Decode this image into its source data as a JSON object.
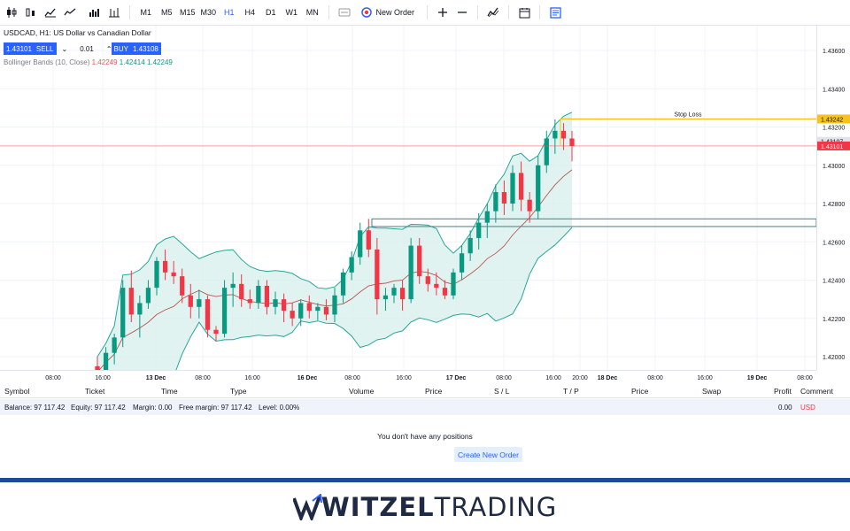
{
  "toolbar": {
    "icons": [
      "candles-icon",
      "bars-icon",
      "area-icon",
      "line-icon",
      "volume-icon",
      "tools-icon"
    ],
    "timeframes": [
      "M1",
      "M5",
      "M15",
      "M30",
      "H1",
      "H4",
      "D1",
      "W1",
      "MN"
    ],
    "active_timeframe": "H1",
    "new_order_label": "New Order"
  },
  "legend": {
    "title": "USDCAD, H1: US Dollar vs Canadian Dollar",
    "sell_price": "1.43101",
    "sell_label": "SELL",
    "quantity": "0.01",
    "buy_label": "BUY",
    "buy_price": "1.43108",
    "indicator_name": "Bollinger Bands (10, Close)",
    "indicator_values": [
      "1.42249",
      "1.42414",
      "1.42249"
    ]
  },
  "price_axis": {
    "labels": [
      "1.43600",
      "1.43400",
      "1.43200",
      "1.43000",
      "1.42800",
      "1.42600",
      "1.42400",
      "1.42200",
      "1.42000"
    ],
    "stop_loss_tag": "1.43242",
    "current_tag": "1.43107",
    "bid_tag": "1.43101"
  },
  "time_axis": {
    "labels": [
      "08:00",
      "16:00",
      "13 Dec",
      "08:00",
      "16:00",
      "16 Dec",
      "08:00",
      "16:00",
      "17 Dec",
      "08:00",
      "16:00",
      "20:00",
      "18 Dec",
      "08:00",
      "16:00",
      "19 Dec",
      "08:00"
    ]
  },
  "annotations": {
    "stop_loss_label": "Stop Loss"
  },
  "colors": {
    "accent": "#2962ff",
    "bull": "#089981",
    "bear": "#f23645",
    "band_fill": "#d7efec",
    "stop_loss": "#f7c21b",
    "bid_line": "#ef5350",
    "brand_dark": "#1f2a44"
  },
  "positions": {
    "columns": [
      "Symbol",
      "Ticket",
      "Time",
      "Type",
      "Volume",
      "Price",
      "S / L",
      "T / P",
      "Price",
      "Swap",
      "Profit",
      "Comment"
    ],
    "balance": "Balance: 97 117.42",
    "equity": "Equity: 97 117.42",
    "margin": "Margin: 0.00",
    "free_margin": "Free margin: 97 117.42",
    "level": "Level: 0.00%",
    "profit": "0.00",
    "currency": "USD",
    "empty_text": "You don't have any positions",
    "create_button": "Create New Order"
  },
  "brand": {
    "part1": "WITZEL",
    "part2": "TRADING"
  },
  "chart_data": {
    "type": "candlestick",
    "symbol": "USDCAD",
    "timeframe": "H1",
    "ylim": [
      1.419,
      1.437
    ],
    "candles": [
      [
        1.4195,
        1.42,
        1.4185,
        1.4192
      ],
      [
        1.4192,
        1.4205,
        1.4188,
        1.4202
      ],
      [
        1.4202,
        1.4212,
        1.4196,
        1.421
      ],
      [
        1.421,
        1.424,
        1.4205,
        1.4236
      ],
      [
        1.4236,
        1.4245,
        1.4218,
        1.4222
      ],
      [
        1.4222,
        1.4232,
        1.421,
        1.4228
      ],
      [
        1.4228,
        1.424,
        1.4225,
        1.4236
      ],
      [
        1.4236,
        1.4252,
        1.4232,
        1.425
      ],
      [
        1.425,
        1.4256,
        1.424,
        1.4244
      ],
      [
        1.4244,
        1.425,
        1.4238,
        1.4242
      ],
      [
        1.4242,
        1.4246,
        1.4228,
        1.4232
      ],
      [
        1.4232,
        1.4238,
        1.422,
        1.4226
      ],
      [
        1.4226,
        1.4235,
        1.422,
        1.423
      ],
      [
        1.423,
        1.4232,
        1.421,
        1.4214
      ],
      [
        1.4214,
        1.4216,
        1.4208,
        1.4212
      ],
      [
        1.4212,
        1.424,
        1.421,
        1.4236
      ],
      [
        1.4236,
        1.4244,
        1.4226,
        1.4238
      ],
      [
        1.4238,
        1.4243,
        1.4226,
        1.423
      ],
      [
        1.423,
        1.4235,
        1.4225,
        1.4228
      ],
      [
        1.4228,
        1.424,
        1.4225,
        1.4237
      ],
      [
        1.4237,
        1.424,
        1.4222,
        1.4226
      ],
      [
        1.4226,
        1.4234,
        1.4222,
        1.423
      ],
      [
        1.423,
        1.4233,
        1.4218,
        1.4224
      ],
      [
        1.4224,
        1.4228,
        1.4216,
        1.422
      ],
      [
        1.422,
        1.423,
        1.4216,
        1.4228
      ],
      [
        1.4228,
        1.4232,
        1.422,
        1.4224
      ],
      [
        1.4224,
        1.4228,
        1.4219,
        1.4226
      ],
      [
        1.4226,
        1.423,
        1.4219,
        1.4222
      ],
      [
        1.4222,
        1.4236,
        1.4218,
        1.4232
      ],
      [
        1.4232,
        1.4246,
        1.4228,
        1.4244
      ],
      [
        1.4244,
        1.4255,
        1.424,
        1.4252
      ],
      [
        1.4252,
        1.427,
        1.4248,
        1.4266
      ],
      [
        1.4266,
        1.4272,
        1.4252,
        1.4256
      ],
      [
        1.4256,
        1.4262,
        1.4222,
        1.423
      ],
      [
        1.423,
        1.4236,
        1.4224,
        1.4232
      ],
      [
        1.4232,
        1.4238,
        1.4228,
        1.4236
      ],
      [
        1.4236,
        1.424,
        1.4224,
        1.423
      ],
      [
        1.423,
        1.4262,
        1.4228,
        1.4258
      ],
      [
        1.4258,
        1.4262,
        1.4238,
        1.4242
      ],
      [
        1.4242,
        1.4246,
        1.4234,
        1.4238
      ],
      [
        1.4238,
        1.4244,
        1.4232,
        1.4236
      ],
      [
        1.4236,
        1.424,
        1.423,
        1.4232
      ],
      [
        1.4232,
        1.4246,
        1.423,
        1.4244
      ],
      [
        1.4244,
        1.4258,
        1.424,
        1.4254
      ],
      [
        1.4254,
        1.4266,
        1.425,
        1.4262
      ],
      [
        1.4262,
        1.4275,
        1.4256,
        1.427
      ],
      [
        1.427,
        1.428,
        1.4262,
        1.4276
      ],
      [
        1.4276,
        1.429,
        1.427,
        1.4286
      ],
      [
        1.4286,
        1.4292,
        1.4274,
        1.428
      ],
      [
        1.428,
        1.43,
        1.4276,
        1.4296
      ],
      [
        1.4296,
        1.4302,
        1.4276,
        1.4282
      ],
      [
        1.4282,
        1.4286,
        1.427,
        1.4276
      ],
      [
        1.4276,
        1.4305,
        1.4272,
        1.43
      ],
      [
        1.43,
        1.4318,
        1.4296,
        1.4314
      ],
      [
        1.4314,
        1.4324,
        1.4306,
        1.4318
      ],
      [
        1.4318,
        1.4322,
        1.4308,
        1.4314
      ],
      [
        1.4314,
        1.4318,
        1.4302,
        1.431
      ]
    ],
    "stop_loss": 1.43242,
    "bid": 1.43101,
    "resistance_zone": [
      1.4268,
      1.4272
    ]
  }
}
